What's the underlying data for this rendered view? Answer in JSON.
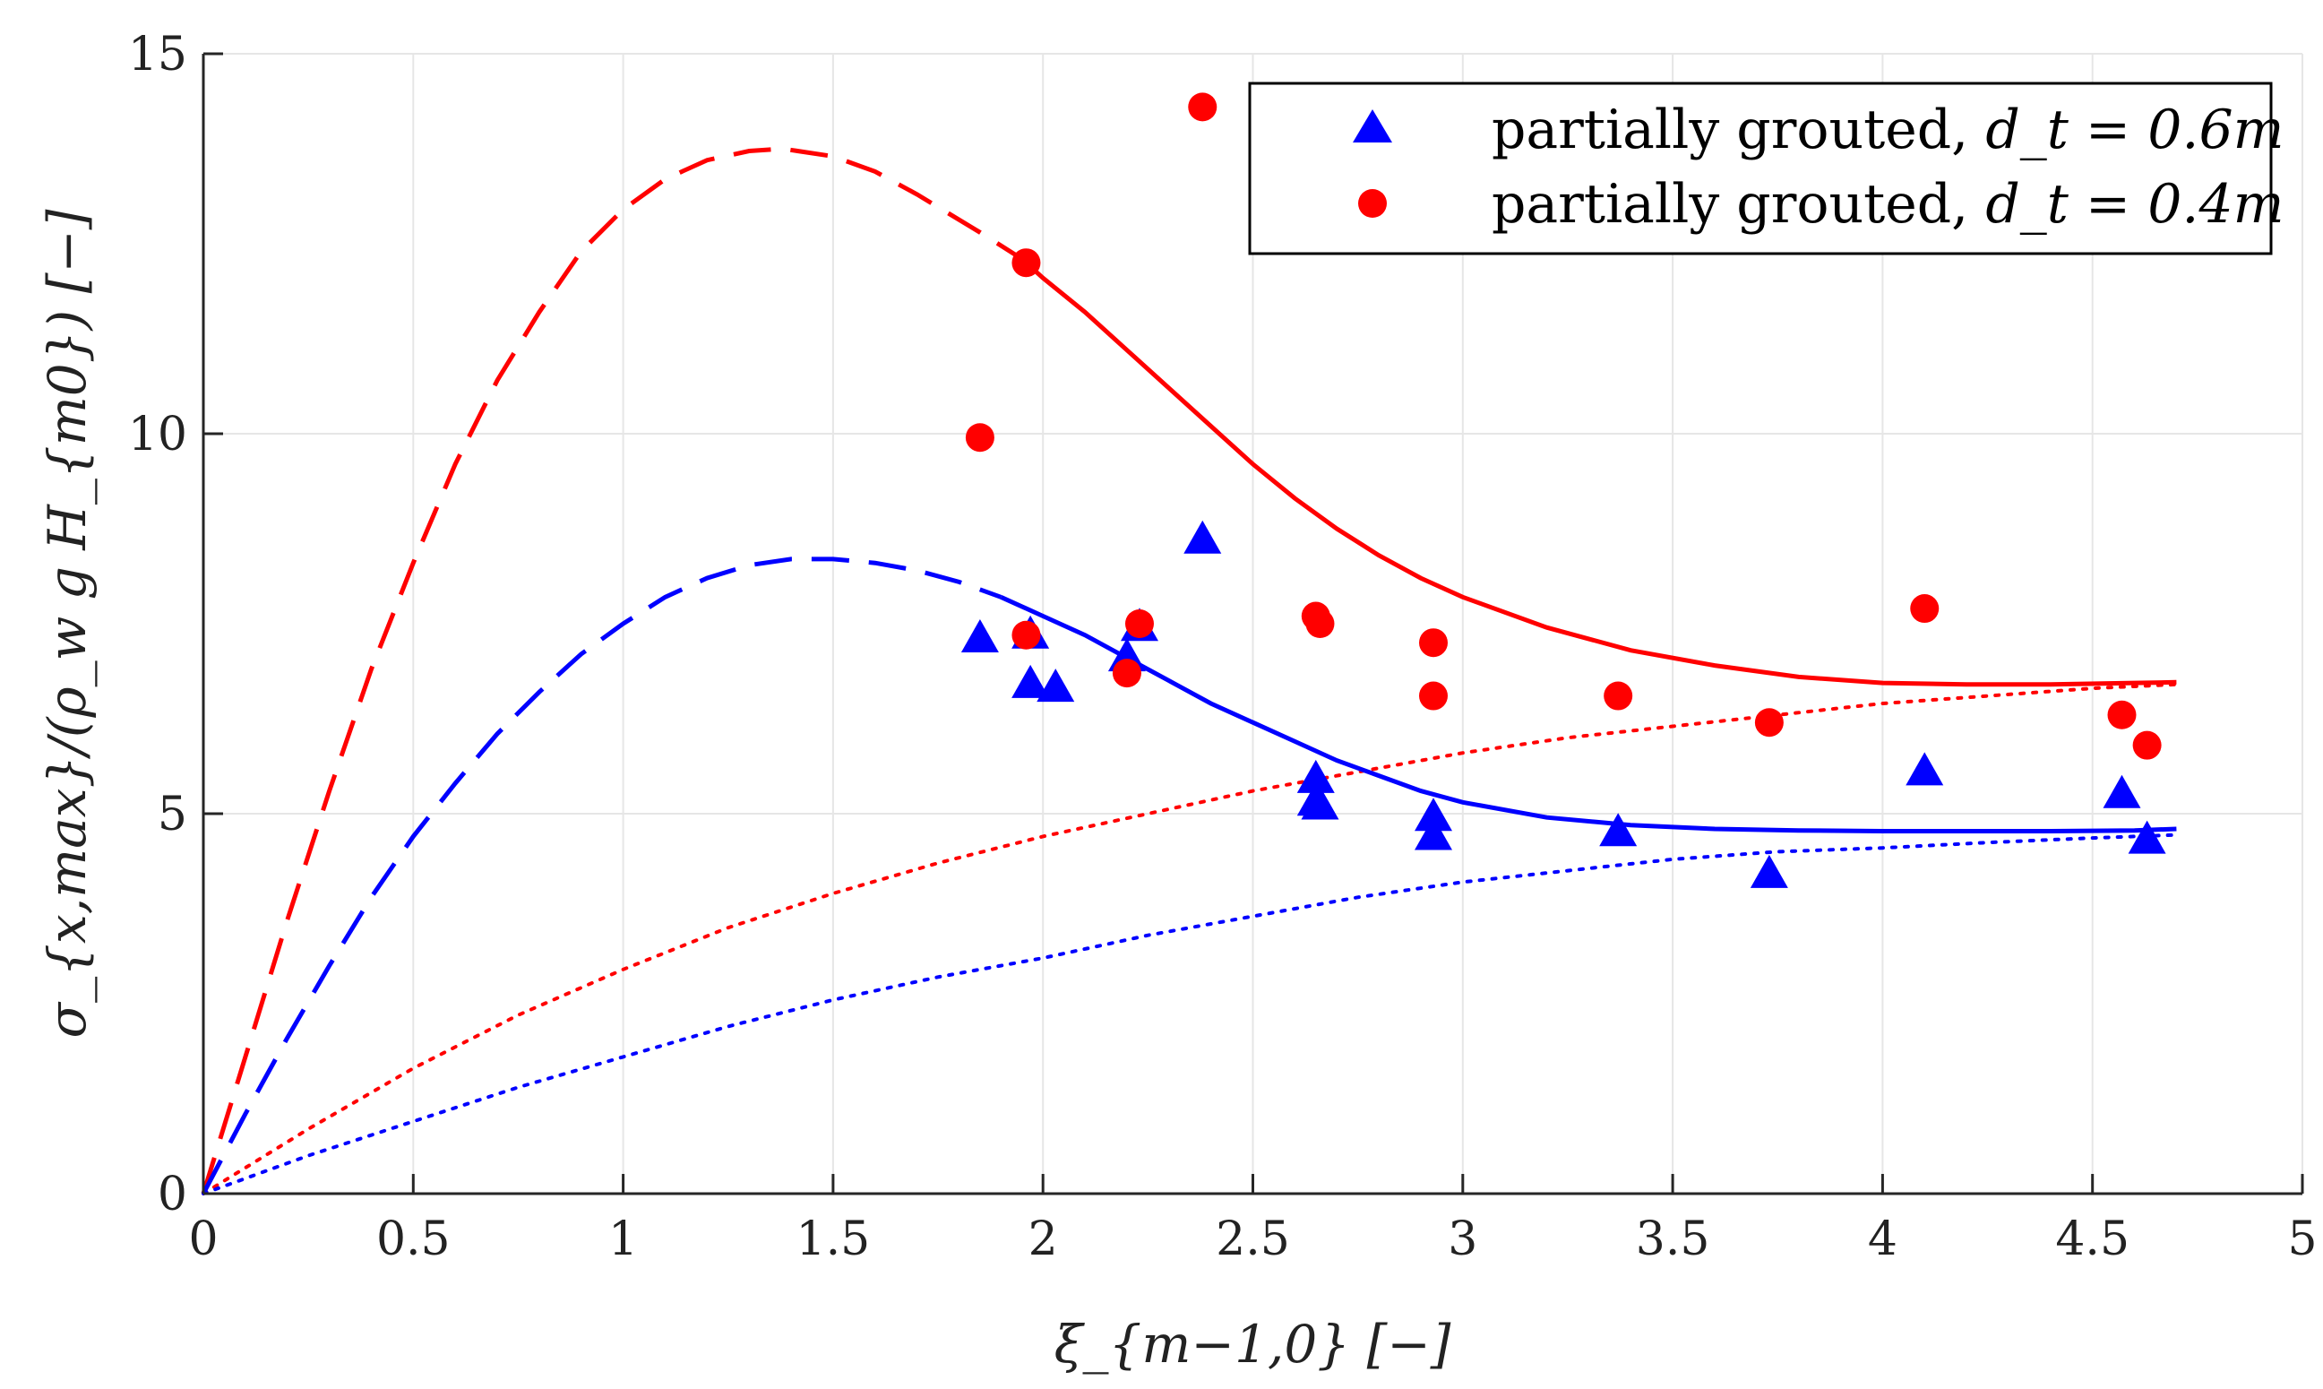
{
  "chart_data": {
    "type": "scatter",
    "title": "",
    "xlabel": "ξ_{m−1,0} [−]",
    "ylabel": "σ_{x,max}/(ρ_w g H_{m0}) [−]",
    "xlim": [
      0,
      5
    ],
    "ylim": [
      0,
      15
    ],
    "xticks": [
      "0",
      "0.5",
      "1",
      "1.5",
      "2",
      "2.5",
      "3",
      "3.5",
      "4",
      "4.5",
      "5"
    ],
    "yticks": [
      "0",
      "5",
      "10",
      "15"
    ],
    "grid": true,
    "legend_position": "top-right",
    "colors": {
      "blue": "#0000ff",
      "red": "#ff0000"
    },
    "series": [
      {
        "name": "partially grouted, d_t = 0.6m",
        "legend_prefix": "partially grouted, ",
        "legend_math": "d_t = 0.6m",
        "kind": "scatter",
        "marker": "triangle",
        "color": "#0000ff",
        "points": [
          [
            1.85,
            7.3
          ],
          [
            1.97,
            7.35
          ],
          [
            1.97,
            6.7
          ],
          [
            2.03,
            6.65
          ],
          [
            2.2,
            7.05
          ],
          [
            2.23,
            7.45
          ],
          [
            2.38,
            8.6
          ],
          [
            2.65,
            5.45
          ],
          [
            2.65,
            5.15
          ],
          [
            2.66,
            5.1
          ],
          [
            2.93,
            4.95
          ],
          [
            2.93,
            4.7
          ],
          [
            3.37,
            4.75
          ],
          [
            3.73,
            4.2
          ],
          [
            4.1,
            5.55
          ],
          [
            4.57,
            5.25
          ],
          [
            4.63,
            4.65
          ]
        ]
      },
      {
        "name": "partially grouted, d_t = 0.4m",
        "legend_prefix": "partially grouted, ",
        "legend_math": "d_t = 0.4m",
        "kind": "scatter",
        "marker": "circle",
        "color": "#ff0000",
        "points": [
          [
            1.85,
            9.95
          ],
          [
            1.96,
            12.25
          ],
          [
            1.96,
            7.35
          ],
          [
            2.2,
            6.85
          ],
          [
            2.23,
            7.5
          ],
          [
            2.38,
            14.3
          ],
          [
            2.65,
            7.6
          ],
          [
            2.66,
            7.5
          ],
          [
            2.93,
            7.25
          ],
          [
            2.93,
            6.55
          ],
          [
            3.37,
            6.55
          ],
          [
            3.73,
            6.2
          ],
          [
            4.1,
            7.7
          ],
          [
            4.57,
            6.3
          ],
          [
            4.63,
            5.9
          ]
        ]
      },
      {
        "kind": "line",
        "color": "#ff0000",
        "style": "dashed",
        "points": [
          [
            0,
            0
          ],
          [
            0.1,
            1.8
          ],
          [
            0.2,
            3.6
          ],
          [
            0.3,
            5.3
          ],
          [
            0.4,
            6.9
          ],
          [
            0.5,
            8.3
          ],
          [
            0.6,
            9.6
          ],
          [
            0.7,
            10.7
          ],
          [
            0.8,
            11.6
          ],
          [
            0.9,
            12.4
          ],
          [
            1.0,
            12.95
          ],
          [
            1.1,
            13.35
          ],
          [
            1.2,
            13.6
          ],
          [
            1.3,
            13.72
          ],
          [
            1.38,
            13.75
          ],
          [
            1.5,
            13.65
          ],
          [
            1.6,
            13.45
          ],
          [
            1.7,
            13.15
          ],
          [
            1.85,
            12.65
          ],
          [
            1.95,
            12.3
          ]
        ]
      },
      {
        "kind": "line",
        "color": "#ff0000",
        "style": "solid",
        "points": [
          [
            1.95,
            12.3
          ],
          [
            2.0,
            12.05
          ],
          [
            2.1,
            11.6
          ],
          [
            2.2,
            11.1
          ],
          [
            2.3,
            10.6
          ],
          [
            2.4,
            10.1
          ],
          [
            2.5,
            9.6
          ],
          [
            2.6,
            9.15
          ],
          [
            2.7,
            8.75
          ],
          [
            2.8,
            8.4
          ],
          [
            2.9,
            8.1
          ],
          [
            3.0,
            7.85
          ],
          [
            3.2,
            7.45
          ],
          [
            3.4,
            7.15
          ],
          [
            3.6,
            6.95
          ],
          [
            3.8,
            6.8
          ],
          [
            4.0,
            6.72
          ],
          [
            4.2,
            6.7
          ],
          [
            4.4,
            6.7
          ],
          [
            4.6,
            6.72
          ],
          [
            4.7,
            6.73
          ]
        ]
      },
      {
        "kind": "line",
        "color": "#ff0000",
        "style": "dotted",
        "points": [
          [
            0,
            0
          ],
          [
            0.25,
            0.85
          ],
          [
            0.5,
            1.65
          ],
          [
            0.75,
            2.35
          ],
          [
            1.0,
            2.95
          ],
          [
            1.25,
            3.5
          ],
          [
            1.5,
            3.95
          ],
          [
            1.75,
            4.35
          ],
          [
            2.0,
            4.7
          ],
          [
            2.25,
            5.0
          ],
          [
            2.5,
            5.3
          ],
          [
            2.75,
            5.55
          ],
          [
            3.0,
            5.8
          ],
          [
            3.25,
            6.0
          ],
          [
            3.5,
            6.15
          ],
          [
            3.75,
            6.3
          ],
          [
            4.0,
            6.45
          ],
          [
            4.25,
            6.55
          ],
          [
            4.5,
            6.65
          ],
          [
            4.7,
            6.7
          ]
        ]
      },
      {
        "kind": "line",
        "color": "#0000ff",
        "style": "dashed",
        "points": [
          [
            0,
            0
          ],
          [
            0.1,
            1.05
          ],
          [
            0.2,
            2.05
          ],
          [
            0.3,
            3.0
          ],
          [
            0.4,
            3.9
          ],
          [
            0.5,
            4.7
          ],
          [
            0.6,
            5.4
          ],
          [
            0.7,
            6.05
          ],
          [
            0.8,
            6.6
          ],
          [
            0.9,
            7.1
          ],
          [
            1.0,
            7.5
          ],
          [
            1.1,
            7.85
          ],
          [
            1.2,
            8.1
          ],
          [
            1.3,
            8.27
          ],
          [
            1.4,
            8.35
          ],
          [
            1.5,
            8.35
          ],
          [
            1.6,
            8.3
          ],
          [
            1.7,
            8.2
          ],
          [
            1.8,
            8.05
          ],
          [
            1.9,
            7.85
          ]
        ]
      },
      {
        "kind": "line",
        "color": "#0000ff",
        "style": "solid",
        "points": [
          [
            1.9,
            7.85
          ],
          [
            2.0,
            7.6
          ],
          [
            2.1,
            7.35
          ],
          [
            2.2,
            7.05
          ],
          [
            2.3,
            6.75
          ],
          [
            2.4,
            6.45
          ],
          [
            2.5,
            6.2
          ],
          [
            2.6,
            5.95
          ],
          [
            2.7,
            5.7
          ],
          [
            2.8,
            5.5
          ],
          [
            2.9,
            5.3
          ],
          [
            3.0,
            5.15
          ],
          [
            3.2,
            4.95
          ],
          [
            3.4,
            4.85
          ],
          [
            3.6,
            4.8
          ],
          [
            3.8,
            4.78
          ],
          [
            4.0,
            4.77
          ],
          [
            4.2,
            4.77
          ],
          [
            4.4,
            4.77
          ],
          [
            4.6,
            4.78
          ],
          [
            4.7,
            4.8
          ]
        ]
      },
      {
        "kind": "line",
        "color": "#0000ff",
        "style": "dotted",
        "points": [
          [
            0,
            0
          ],
          [
            0.25,
            0.5
          ],
          [
            0.5,
            0.95
          ],
          [
            0.75,
            1.4
          ],
          [
            1.0,
            1.8
          ],
          [
            1.25,
            2.2
          ],
          [
            1.5,
            2.55
          ],
          [
            1.75,
            2.85
          ],
          [
            2.0,
            3.1
          ],
          [
            2.25,
            3.4
          ],
          [
            2.5,
            3.65
          ],
          [
            2.75,
            3.9
          ],
          [
            3.0,
            4.1
          ],
          [
            3.25,
            4.25
          ],
          [
            3.5,
            4.4
          ],
          [
            3.75,
            4.5
          ],
          [
            4.0,
            4.55
          ],
          [
            4.25,
            4.62
          ],
          [
            4.5,
            4.68
          ],
          [
            4.7,
            4.72
          ]
        ]
      }
    ]
  }
}
